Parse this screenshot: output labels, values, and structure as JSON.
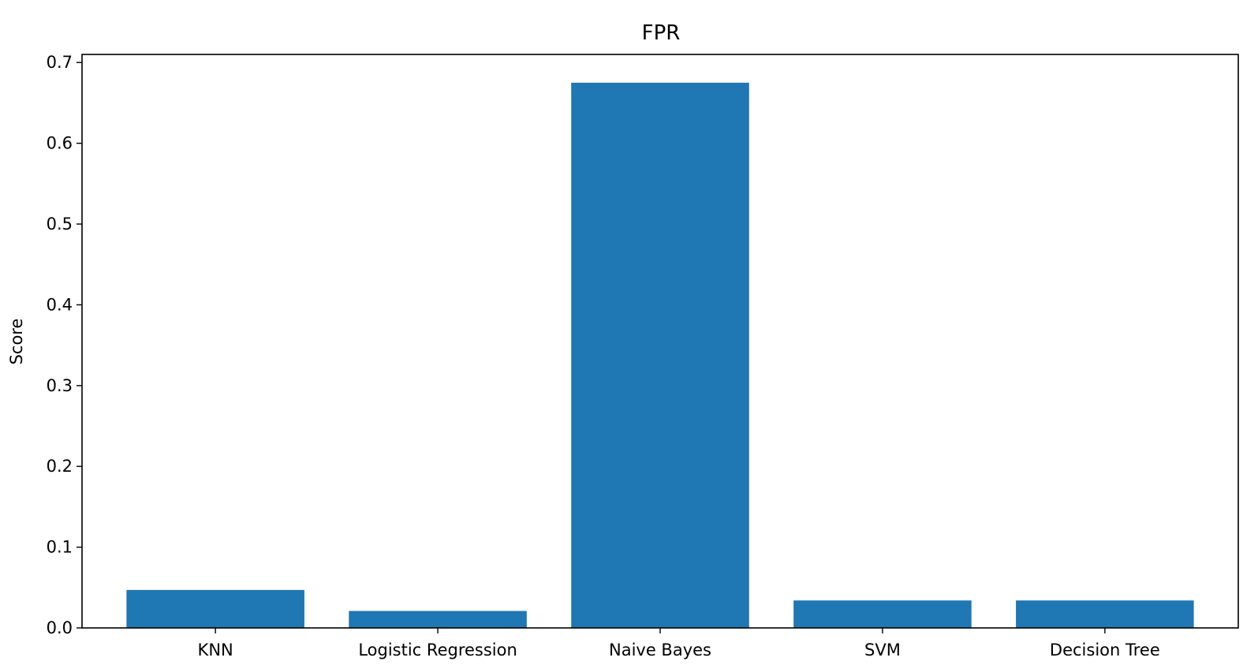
{
  "chart_data": {
    "type": "bar",
    "title": "FPR",
    "xlabel": "",
    "ylabel": "Score",
    "categories": [
      "KNN",
      "Logistic Regression",
      "Naive Bayes",
      "SVM",
      "Decision Tree"
    ],
    "values": [
      0.047,
      0.021,
      0.675,
      0.034,
      0.034
    ],
    "ylim": [
      0,
      0.71
    ],
    "yticks": [
      0.0,
      0.1,
      0.2,
      0.3,
      0.4,
      0.5,
      0.6,
      0.7
    ],
    "ytick_labels": [
      "0.0",
      "0.1",
      "0.2",
      "0.3",
      "0.4",
      "0.5",
      "0.6",
      "0.7"
    ],
    "grid": false,
    "legend": "none",
    "bar_color": "#1f77b4"
  }
}
